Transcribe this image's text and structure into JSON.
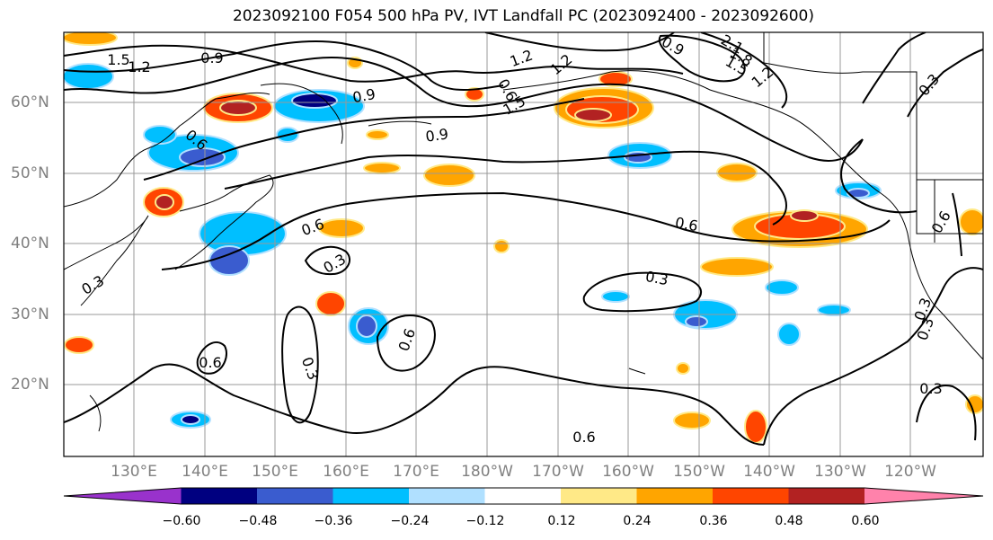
{
  "title": "2023092100 F054 500 hPa PV, IVT Landfall PC (2023092400 - 2023092600)",
  "map": {
    "lat_labels": [
      "60°N",
      "50°N",
      "40°N",
      "30°N",
      "20°N"
    ],
    "lon_labels": [
      "130°E",
      "140°E",
      "150°E",
      "160°E",
      "170°E",
      "180°W",
      "170°W",
      "160°W",
      "150°W",
      "140°W",
      "130°W",
      "120°W"
    ],
    "contour_labels": [
      "1.5",
      "1.2",
      "0.9",
      "0.9",
      "0.9",
      "1.2",
      "1.5",
      "0.6",
      "1.2",
      "0.9",
      "2.1",
      "1.8",
      "1.5",
      "1.2",
      "0.3",
      "0.6",
      "0.6",
      "0.3",
      "0.6",
      "0.3",
      "0.6",
      "0.6",
      "0.3",
      "0.3",
      "0.3",
      "0.3",
      "0.6",
      "0.3",
      "0.6"
    ],
    "colors": {
      "land_outline": "#000000",
      "grid": "#999999",
      "contour": "#000000"
    }
  },
  "colorbar": {
    "colors": [
      "#9932cc",
      "#000080",
      "#3a5ccf",
      "#00bfff",
      "#b0e0ff",
      "#ffffff",
      "#ffe987",
      "#ffa500",
      "#ff4500",
      "#b22222",
      "#ff82ab"
    ],
    "labels": [
      "−0.60",
      "−0.48",
      "−0.36",
      "−0.24",
      "−0.12",
      "0.12",
      "0.24",
      "0.36",
      "0.48",
      "0.60"
    ]
  }
}
